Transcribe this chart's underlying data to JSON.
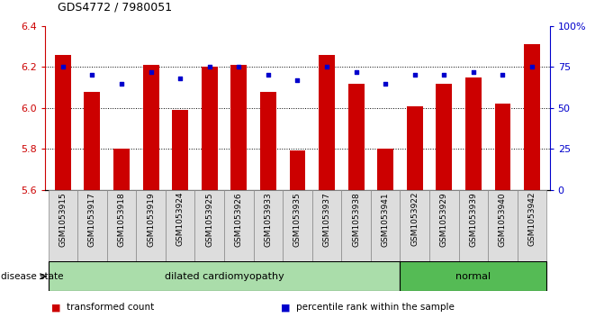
{
  "title": "GDS4772 / 7980051",
  "samples": [
    "GSM1053915",
    "GSM1053917",
    "GSM1053918",
    "GSM1053919",
    "GSM1053924",
    "GSM1053925",
    "GSM1053926",
    "GSM1053933",
    "GSM1053935",
    "GSM1053937",
    "GSM1053938",
    "GSM1053941",
    "GSM1053922",
    "GSM1053929",
    "GSM1053939",
    "GSM1053940",
    "GSM1053942"
  ],
  "bar_values": [
    6.26,
    6.08,
    5.8,
    6.21,
    5.99,
    6.2,
    6.21,
    6.08,
    5.79,
    6.26,
    6.12,
    5.8,
    6.01,
    6.12,
    6.15,
    6.02,
    6.31
  ],
  "dot_values": [
    75,
    70,
    65,
    72,
    68,
    75,
    75,
    70,
    67,
    75,
    72,
    65,
    70,
    70,
    72,
    70,
    75
  ],
  "ylim_left": [
    5.6,
    6.4
  ],
  "ylim_right": [
    0,
    100
  ],
  "right_ticks": [
    0,
    25,
    50,
    75,
    100
  ],
  "right_tick_labels": [
    "0",
    "25",
    "50",
    "75",
    "100%"
  ],
  "left_ticks": [
    5.6,
    5.8,
    6.0,
    6.2,
    6.4
  ],
  "bar_color": "#CC0000",
  "dot_color": "#0000CC",
  "bg_color": "#FFFFFF",
  "disease_groups": [
    {
      "label": "dilated cardiomyopathy",
      "start": 0,
      "end": 12,
      "color": "#AADDAA"
    },
    {
      "label": "normal",
      "start": 12,
      "end": 17,
      "color": "#55BB55"
    }
  ],
  "disease_state_label": "disease state",
  "legend_items": [
    {
      "label": "transformed count",
      "color": "#CC0000"
    },
    {
      "label": "percentile rank within the sample",
      "color": "#0000CC"
    }
  ],
  "base_value": 5.6
}
